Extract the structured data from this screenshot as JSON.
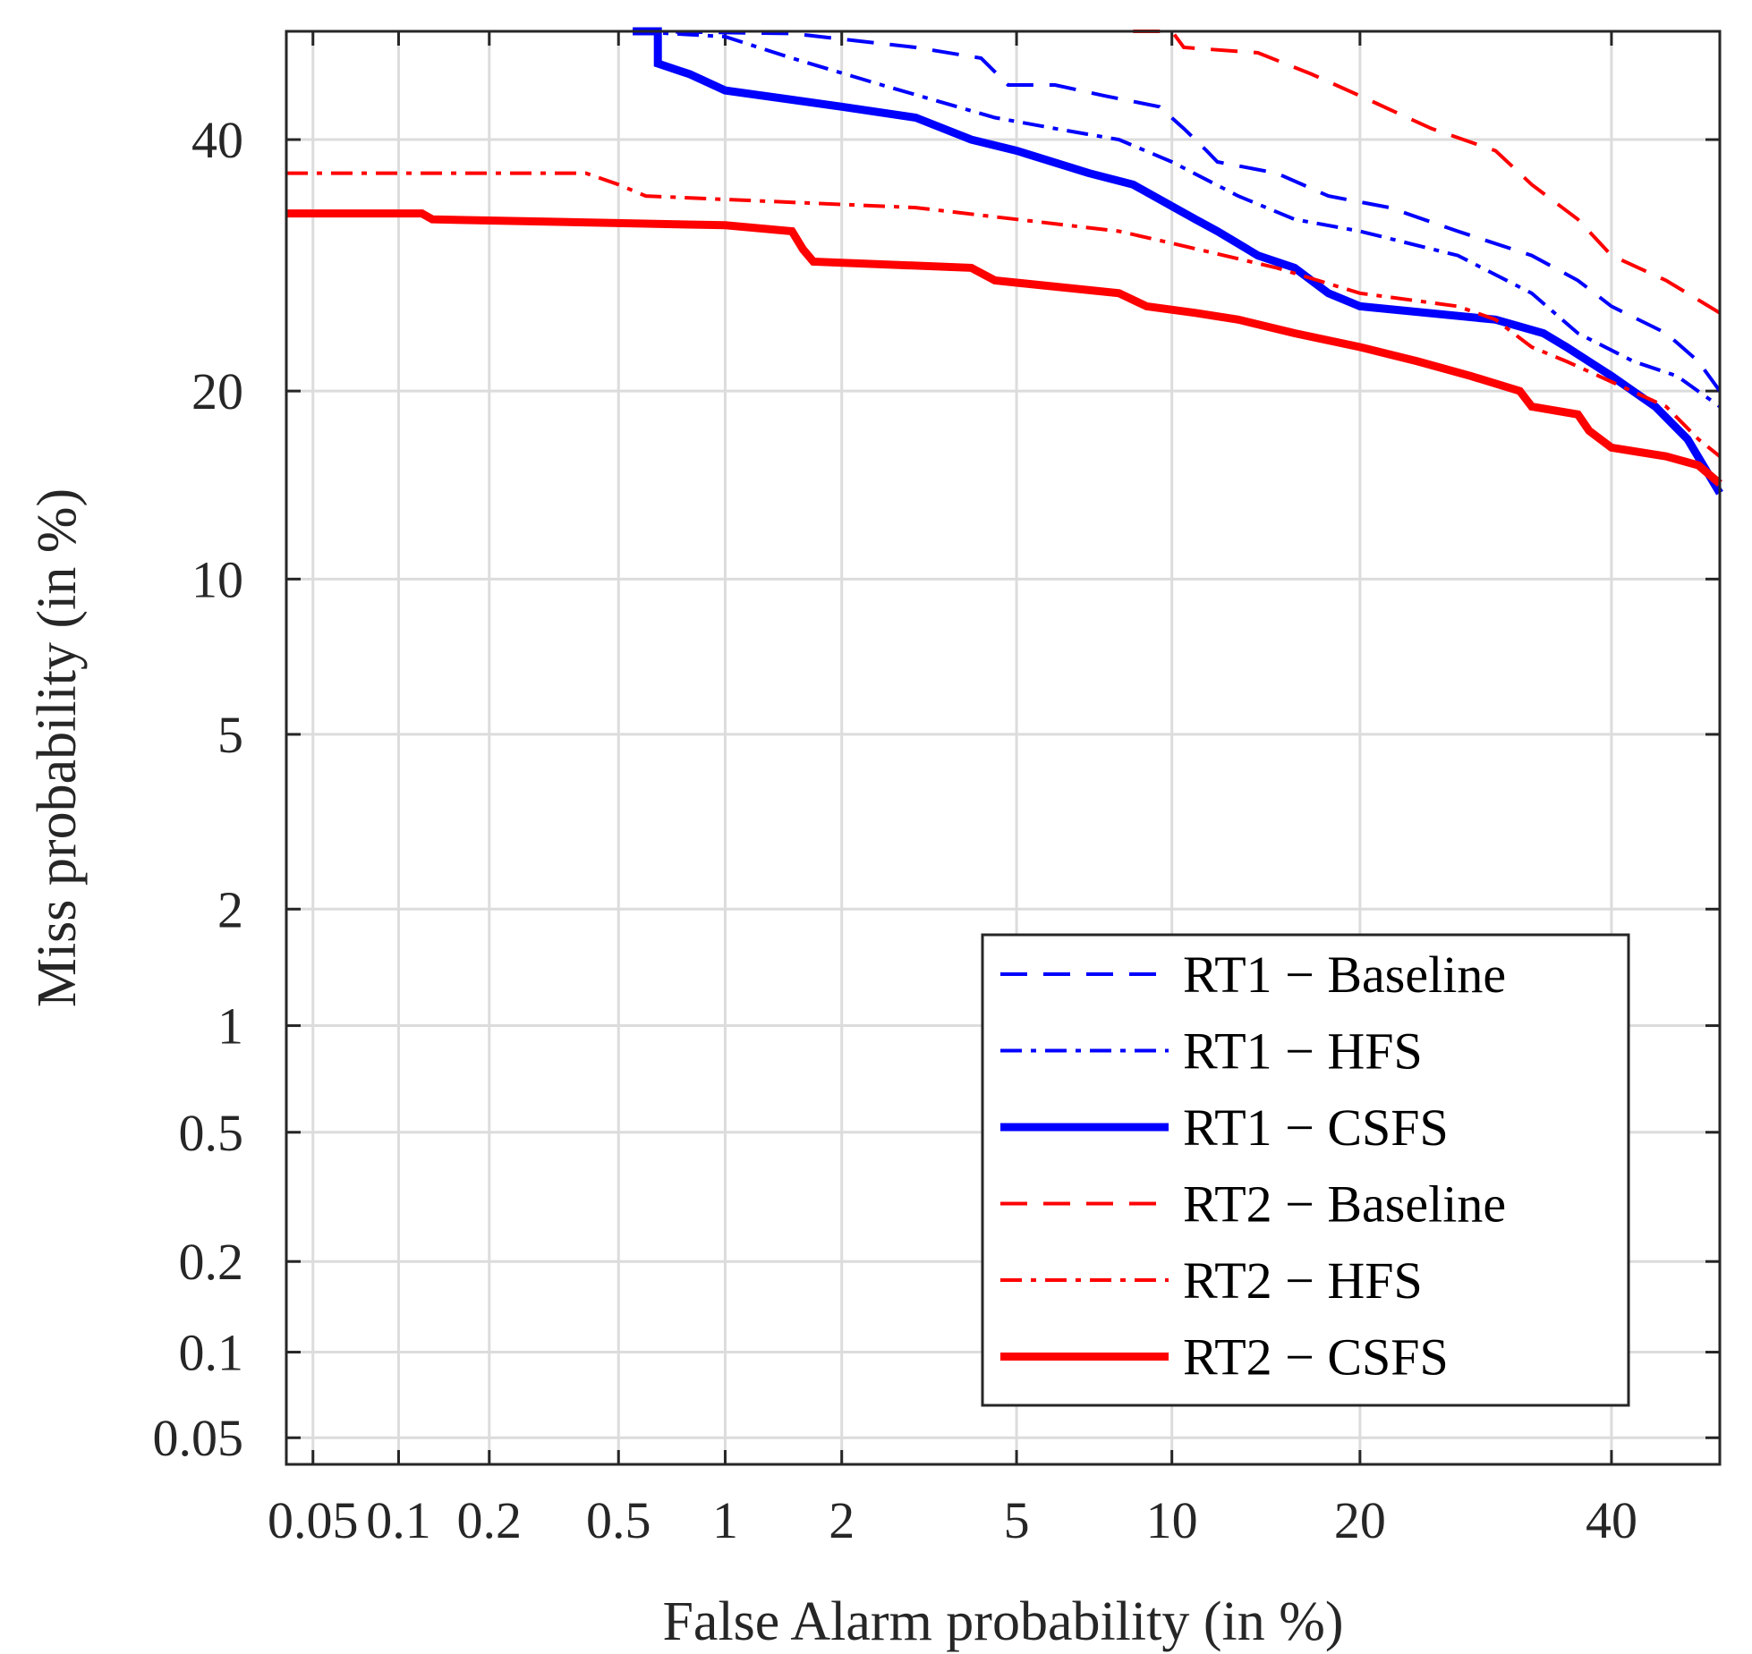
{
  "chart_data": {
    "type": "line",
    "scale": "normal-deviate (DET)",
    "title": "",
    "xlabel": "False Alarm probability (in %)",
    "ylabel": "Miss probability (in %)",
    "xlim": [
      0.04,
      50
    ],
    "ylim": [
      0.04,
      50
    ],
    "grid": true,
    "legend_position": "bottom-right",
    "x_ticks": [
      0.05,
      0.1,
      0.2,
      0.5,
      1,
      2,
      5,
      10,
      20,
      40
    ],
    "x_tick_labels": [
      "0.05",
      "0.1",
      "0.2",
      "0.5",
      "1",
      "2",
      "5",
      "10",
      "20",
      "40"
    ],
    "y_ticks": [
      0.05,
      0.1,
      0.2,
      0.5,
      1,
      2,
      5,
      10,
      20,
      40
    ],
    "y_tick_labels": [
      "0.05",
      "0.1",
      "0.2",
      "0.5",
      "1",
      "2",
      "5",
      "10",
      "20",
      "40"
    ],
    "series": [
      {
        "name": "RT1 − Baseline",
        "color": "#0000ff",
        "style": "dashed",
        "points": [
          [
            0.55,
            50
          ],
          [
            1.5,
            49.8
          ],
          [
            3,
            48.5
          ],
          [
            4.2,
            47.5
          ],
          [
            4.8,
            45
          ],
          [
            6,
            45
          ],
          [
            7.5,
            44
          ],
          [
            9.5,
            43
          ],
          [
            10.5,
            41
          ],
          [
            11.5,
            39
          ],
          [
            12,
            38
          ],
          [
            15,
            37
          ],
          [
            18,
            35
          ],
          [
            22,
            34
          ],
          [
            27,
            32
          ],
          [
            33,
            30
          ],
          [
            37,
            28
          ],
          [
            40,
            26
          ],
          [
            45,
            24
          ],
          [
            48,
            22
          ],
          [
            50,
            20
          ]
        ]
      },
      {
        "name": "RT1 − HFS",
        "color": "#0000ff",
        "style": "dashdot",
        "points": [
          [
            0.55,
            50
          ],
          [
            1,
            49.5
          ],
          [
            1.5,
            47.5
          ],
          [
            2.5,
            45
          ],
          [
            4.5,
            42
          ],
          [
            6,
            41
          ],
          [
            8,
            40
          ],
          [
            10,
            38
          ],
          [
            13,
            35
          ],
          [
            16,
            33
          ],
          [
            20,
            32
          ],
          [
            27,
            30
          ],
          [
            33,
            27
          ],
          [
            37,
            24
          ],
          [
            42,
            22
          ],
          [
            46,
            21
          ],
          [
            50,
            19
          ]
        ]
      },
      {
        "name": "RT1 − CSFS",
        "color": "#0000ff",
        "style": "solid-thick",
        "points": [
          [
            0.55,
            50
          ],
          [
            0.65,
            50
          ],
          [
            0.65,
            47
          ],
          [
            0.8,
            46
          ],
          [
            1,
            44.5
          ],
          [
            2,
            43
          ],
          [
            3,
            42
          ],
          [
            4,
            40
          ],
          [
            5,
            39
          ],
          [
            7,
            37
          ],
          [
            8.5,
            36
          ],
          [
            11,
            33
          ],
          [
            12,
            32
          ],
          [
            14,
            30
          ],
          [
            16,
            29
          ],
          [
            18,
            27
          ],
          [
            20,
            26
          ],
          [
            30,
            25
          ],
          [
            34,
            24
          ],
          [
            36,
            23
          ],
          [
            40,
            21
          ],
          [
            44,
            19
          ],
          [
            47,
            17
          ],
          [
            50,
            14
          ]
        ]
      },
      {
        "name": "RT2 − Baseline",
        "color": "#ff0000",
        "style": "dashed",
        "points": [
          [
            8.5,
            50
          ],
          [
            10,
            50
          ],
          [
            10.5,
            48.5
          ],
          [
            14,
            48
          ],
          [
            17,
            46
          ],
          [
            20,
            44
          ],
          [
            25,
            41
          ],
          [
            30,
            39
          ],
          [
            33,
            36
          ],
          [
            37,
            33
          ],
          [
            40,
            30
          ],
          [
            45,
            28
          ],
          [
            50,
            25.5
          ]
        ]
      },
      {
        "name": "RT2 − HFS",
        "color": "#ff0000",
        "style": "dashdot",
        "points": [
          [
            0.04,
            37
          ],
          [
            0.4,
            37
          ],
          [
            0.5,
            36
          ],
          [
            0.6,
            35
          ],
          [
            3,
            34
          ],
          [
            5,
            33
          ],
          [
            8,
            32
          ],
          [
            10,
            31
          ],
          [
            15,
            29
          ],
          [
            20,
            27
          ],
          [
            27,
            26
          ],
          [
            30,
            25
          ],
          [
            33,
            23
          ],
          [
            36,
            22
          ],
          [
            45,
            19
          ],
          [
            48,
            17
          ],
          [
            50,
            16
          ]
        ]
      },
      {
        "name": "RT2 − CSFS",
        "color": "#ff0000",
        "style": "solid-thick",
        "points": [
          [
            0.04,
            33.5
          ],
          [
            0.12,
            33.5
          ],
          [
            0.13,
            33
          ],
          [
            1,
            32.5
          ],
          [
            1.5,
            32
          ],
          [
            1.6,
            30.5
          ],
          [
            1.7,
            29.5
          ],
          [
            4,
            29
          ],
          [
            4.5,
            28
          ],
          [
            8,
            27
          ],
          [
            9,
            26
          ],
          [
            11,
            25.5
          ],
          [
            13,
            25
          ],
          [
            16,
            24
          ],
          [
            20,
            23
          ],
          [
            24,
            22
          ],
          [
            28,
            21
          ],
          [
            32,
            20
          ],
          [
            33,
            19
          ],
          [
            37,
            18.5
          ],
          [
            38,
            17.5
          ],
          [
            40,
            16.5
          ],
          [
            45,
            16
          ],
          [
            48,
            15.5
          ],
          [
            50,
            14.5
          ]
        ]
      }
    ]
  }
}
